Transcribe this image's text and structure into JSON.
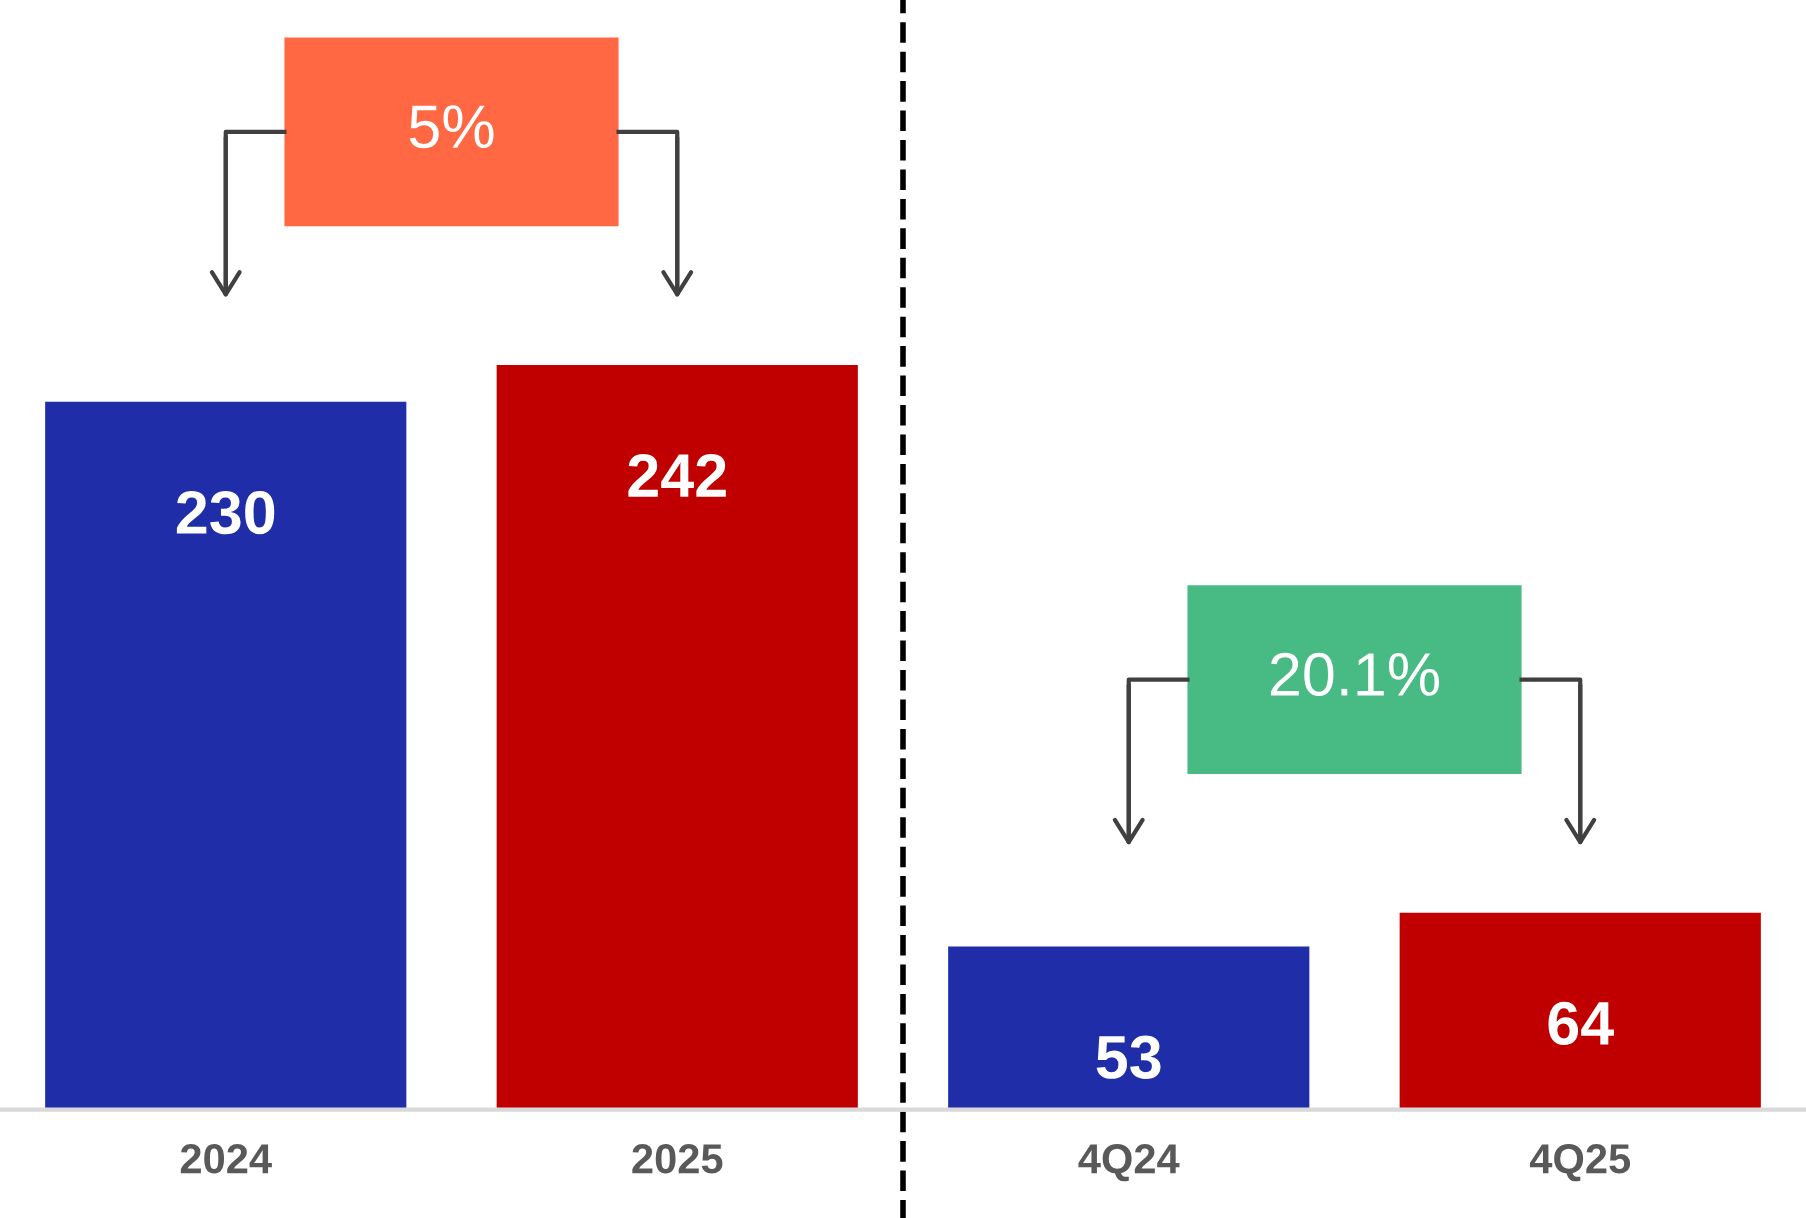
{
  "chart_data": {
    "type": "bar",
    "categories": [
      "2024",
      "2025",
      "4Q24",
      "4Q25"
    ],
    "values": [
      230,
      242,
      53,
      64
    ],
    "colors": [
      "#1f2ea8",
      "#c00000",
      "#1f2ea8",
      "#c00000"
    ],
    "data_labels": true,
    "annotations": [
      "5%",
      "20.1%"
    ]
  }
}
